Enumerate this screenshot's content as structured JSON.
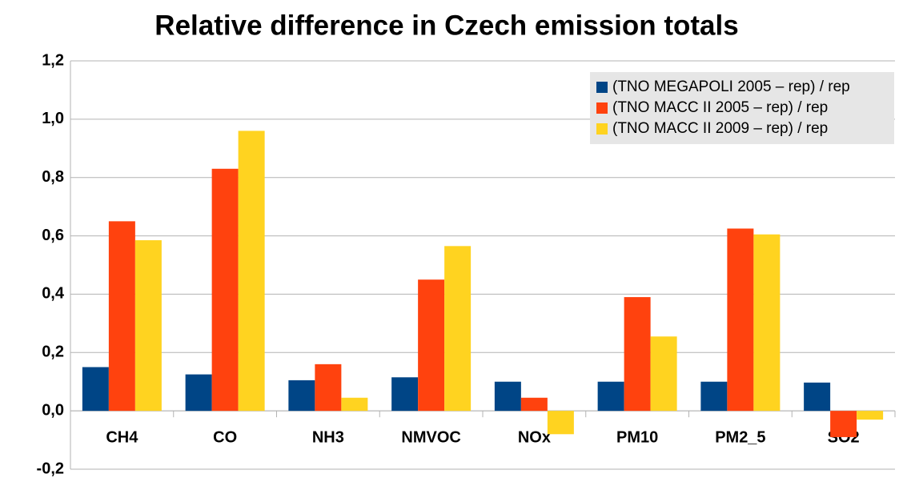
{
  "chart_data": {
    "type": "bar",
    "title": "Relative difference in Czech emission totals",
    "categories": [
      "CH4",
      "CO",
      "NH3",
      "NMVOC",
      "NOx",
      "PM10",
      "PM2_5",
      "SO2"
    ],
    "series": [
      {
        "name": "(TNO MEGAPOLI 2005 – rep) / rep",
        "color": "#004586",
        "values": [
          0.15,
          0.125,
          0.105,
          0.115,
          0.1,
          0.1,
          0.1,
          0.097
        ]
      },
      {
        "name": "(TNO MACC II 2005 – rep) / rep",
        "color": "#ff420e",
        "values": [
          0.65,
          0.83,
          0.16,
          0.45,
          0.045,
          0.39,
          0.625,
          -0.09
        ]
      },
      {
        "name": "(TNO MACC II 2009 – rep) / rep",
        "color": "#ffd320",
        "values": [
          0.585,
          0.96,
          0.045,
          0.565,
          -0.08,
          0.255,
          0.605,
          -0.03
        ]
      }
    ],
    "ylim": [
      -0.2,
      1.2
    ],
    "yticks": [
      {
        "value": -0.2,
        "label": "-0,2"
      },
      {
        "value": 0,
        "label": "0,0"
      },
      {
        "value": 0.2,
        "label": "0,2"
      },
      {
        "value": 0.4,
        "label": "0,4"
      },
      {
        "value": 0.6,
        "label": "0,6"
      },
      {
        "value": 0.8,
        "label": "0,8"
      },
      {
        "value": 1.0,
        "label": "1,0"
      },
      {
        "value": 1.2,
        "label": "1,2"
      }
    ],
    "grid": true,
    "legend": "top-right"
  }
}
